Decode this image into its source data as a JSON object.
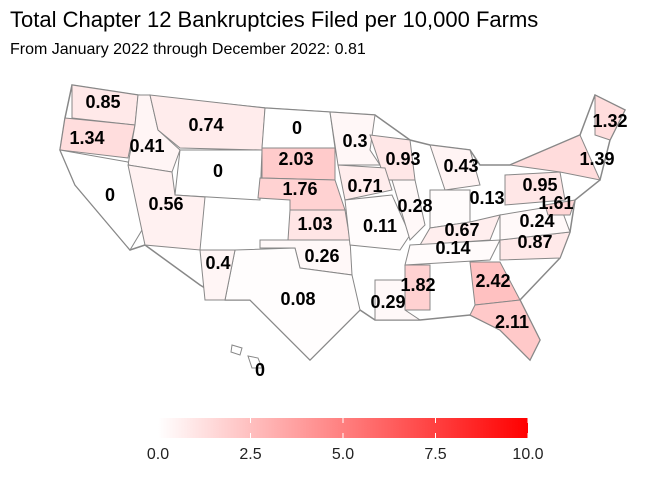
{
  "map": {
    "title": "Total Chapter 12 Bankruptcies Filed per 10,000 Farms",
    "subtitle": "From January 2022 through December 2022: 0.81",
    "values": [
      0.85,
      1.34,
      0.41,
      0.74,
      0,
      0,
      0.56,
      0,
      2.03,
      1.76,
      1.03,
      0.26,
      0.08,
      0.4,
      0.3,
      0.93,
      0.71,
      0.11,
      0.28,
      0.43,
      0.13,
      0.67,
      0.14,
      1.82,
      0.29,
      2.42,
      2.11,
      0.87,
      0.24,
      0.95,
      1.39,
      1.32,
      1.61,
      0
    ],
    "color_scale": {
      "range": [
        0,
        10
      ],
      "colors": [
        "#ffffff",
        "#ff0000"
      ],
      "ticks": [
        {
          "value": 0,
          "label": "0.0"
        },
        {
          "value": 2.5,
          "label": "2.5"
        },
        {
          "value": 5,
          "label": "5.0"
        },
        {
          "value": 7.5,
          "label": "7.5"
        },
        {
          "value": 10,
          "label": "10.0"
        }
      ]
    }
  }
}
